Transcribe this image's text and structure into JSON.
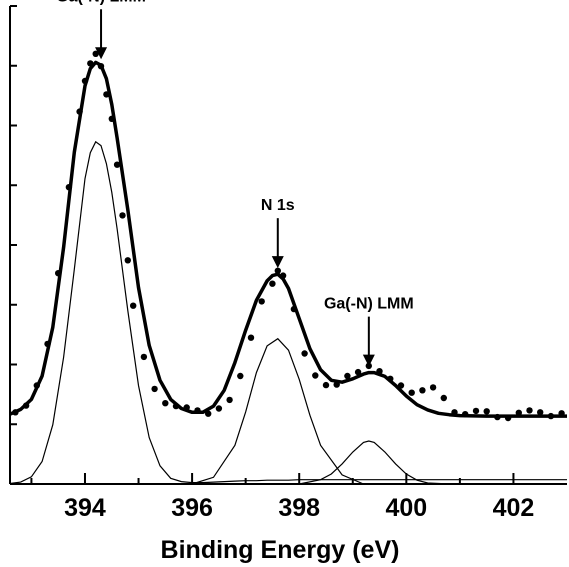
{
  "chart_data": {
    "type": "line",
    "title": "",
    "xlabel": "Binding Energy (eV)",
    "ylabel": "",
    "xlim": [
      392.6,
      403.0
    ],
    "ylim": [
      0,
      100
    ],
    "x_ticks": [
      394,
      396,
      398,
      400,
      402
    ],
    "x_tick_labels": [
      "394",
      "396",
      "398",
      "400",
      "402"
    ],
    "x_minor_ticks": [
      393,
      395,
      397,
      399,
      401
    ],
    "y_ticks": [
      0,
      12.5,
      25,
      37.5,
      50,
      62.5,
      75,
      87.5,
      100
    ],
    "grid": false,
    "legend": "none",
    "series": [
      {
        "kind": "measured-points",
        "style": "dots",
        "x": [
          392.7,
          392.9,
          393.1,
          393.3,
          393.5,
          393.7,
          393.9,
          394.0,
          394.1,
          394.2,
          394.3,
          394.4,
          394.5,
          394.6,
          394.7,
          394.8,
          394.9,
          395.1,
          395.3,
          395.5,
          395.7,
          395.9,
          396.1,
          396.3,
          396.5,
          396.7,
          396.9,
          397.1,
          397.3,
          397.5,
          397.6,
          397.7,
          397.9,
          398.1,
          398.3,
          398.5,
          398.7,
          398.9,
          399.1,
          399.3,
          399.5,
          399.7,
          399.9,
          400.1,
          400.3,
          400.5,
          400.7,
          400.9,
          401.1,
          401.3,
          401.5,
          401.7,
          401.9,
          402.1,
          402.3,
          402.5,
          402.7,
          402.9
        ],
        "y": [
          15.0,
          16.4,
          20.6,
          29.3,
          44.1,
          62.1,
          77.9,
          84.3,
          88.0,
          90.0,
          87.4,
          81.5,
          76.4,
          66.8,
          56.2,
          46.8,
          37.3,
          26.6,
          19.9,
          16.9,
          16.3,
          16.0,
          15.4,
          14.7,
          15.8,
          17.6,
          22.6,
          30.6,
          38.2,
          41.9,
          44.6,
          43.6,
          36.6,
          27.3,
          22.7,
          20.7,
          20.8,
          22.6,
          23.4,
          24.7,
          23.6,
          22.0,
          20.6,
          19.1,
          19.6,
          20.2,
          18.0,
          15.0,
          14.6,
          15.3,
          15.2,
          14.0,
          13.8,
          14.9,
          15.4,
          15.0,
          14.2,
          14.8
        ]
      },
      {
        "kind": "fitted-envelope",
        "style": "thick-line",
        "x": [
          392.6,
          392.8,
          393.0,
          393.2,
          393.4,
          393.6,
          393.8,
          394.0,
          394.1,
          394.2,
          394.3,
          394.4,
          394.5,
          394.6,
          394.8,
          395.0,
          395.2,
          395.4,
          395.6,
          395.8,
          396.0,
          396.2,
          396.4,
          396.6,
          396.8,
          397.0,
          397.2,
          397.4,
          397.5,
          397.6,
          397.7,
          397.8,
          398.0,
          398.2,
          398.4,
          398.6,
          398.8,
          399.0,
          399.2,
          399.3,
          399.4,
          399.6,
          399.8,
          400.0,
          400.2,
          400.4,
          400.6,
          400.8,
          401.0,
          401.5,
          402.0,
          402.5,
          403.0
        ],
        "y": [
          14.6,
          15.6,
          17.7,
          22.6,
          32.8,
          49.5,
          69.4,
          83.3,
          86.9,
          88.2,
          87.6,
          84.8,
          79.4,
          72.4,
          57.4,
          41.1,
          29.0,
          21.7,
          17.7,
          15.8,
          15.0,
          15.0,
          16.3,
          19.6,
          25.4,
          32.2,
          38.4,
          42.5,
          43.6,
          43.9,
          42.9,
          40.9,
          34.6,
          28.3,
          23.9,
          21.7,
          21.3,
          22.0,
          23.0,
          23.3,
          23.3,
          22.5,
          20.6,
          18.4,
          16.6,
          15.5,
          14.8,
          14.5,
          14.3,
          14.2,
          14.2,
          14.2,
          14.2
        ]
      },
      {
        "kind": "component-peak",
        "style": "thin-line",
        "x": [
          392.6,
          392.8,
          393.0,
          393.2,
          393.4,
          393.6,
          393.8,
          394.0,
          394.1,
          394.2,
          394.3,
          394.4,
          394.5,
          394.6,
          394.8,
          395.0,
          395.2,
          395.4,
          395.6,
          395.8,
          396.0,
          396.2,
          396.4,
          396.6,
          396.8,
          397.0,
          397.2,
          397.4,
          397.6,
          397.8,
          398.0,
          398.2,
          398.4,
          398.6,
          398.8,
          399.0,
          399.2,
          399.4,
          399.6,
          399.8,
          400.0,
          400.2,
          400.4,
          400.6,
          400.8,
          401.0,
          401.5,
          402.0,
          402.5,
          403.0
        ],
        "y": [
          0.1,
          0.4,
          1.5,
          4.7,
          12.4,
          26.5,
          44.9,
          63.9,
          69.3,
          71.6,
          70.8,
          67.0,
          61.0,
          53.4,
          36.3,
          20.6,
          9.7,
          3.8,
          1.2,
          0.5,
          0.3,
          0.3,
          0.4,
          0.5,
          0.6,
          0.7,
          0.7,
          0.8,
          0.8,
          0.8,
          0.9,
          0.9,
          0.9,
          0.9,
          0.9,
          0.9,
          0.9,
          0.9,
          0.9,
          0.9,
          0.9,
          0.9,
          0.9,
          0.9,
          0.9,
          0.9,
          0.9,
          0.9,
          0.9,
          0.9
        ]
      },
      {
        "kind": "component-peak",
        "style": "thin-line",
        "x": [
          396.0,
          396.4,
          396.8,
          397.0,
          397.2,
          397.4,
          397.6,
          397.8,
          398.0,
          398.2,
          398.4,
          398.8,
          399.2
        ],
        "y": [
          0,
          1.4,
          8.1,
          15.1,
          23.3,
          28.9,
          30.4,
          28.0,
          21.9,
          14.4,
          8.1,
          1.9,
          0
        ]
      },
      {
        "kind": "component-peak",
        "style": "thin-line",
        "x": [
          398.0,
          398.4,
          398.6,
          398.8,
          399.0,
          399.2,
          399.3,
          399.4,
          399.6,
          399.8,
          400.0,
          400.2,
          400.4,
          400.8
        ],
        "y": [
          0,
          0.9,
          2.1,
          4.2,
          6.7,
          8.7,
          9.0,
          8.7,
          6.7,
          4.2,
          2.1,
          0.8,
          0.2,
          0
        ]
      }
    ],
    "annotations": [
      {
        "text": "Ga(-N) LMM",
        "x": 394.3
      },
      {
        "text": "N 1s",
        "x": 397.6
      },
      {
        "text": "Ga(-N) LMM",
        "x": 399.3
      }
    ]
  }
}
